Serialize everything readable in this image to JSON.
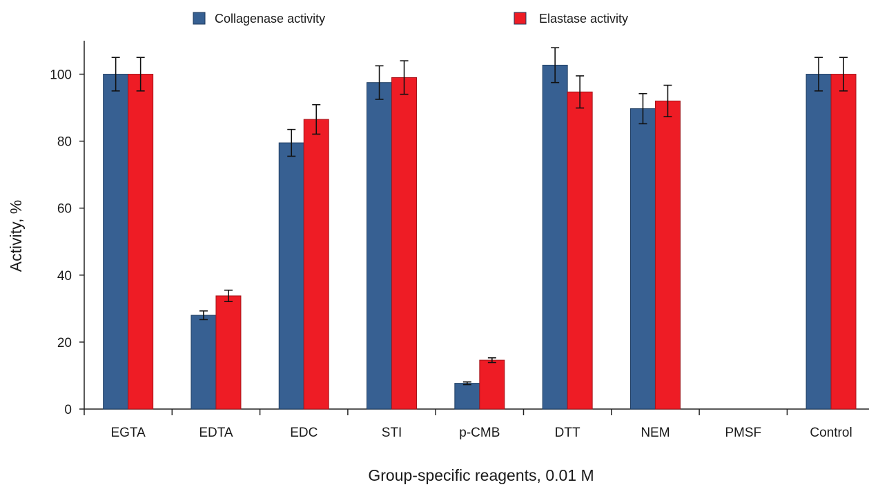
{
  "chart_data": {
    "type": "bar",
    "categories": [
      "EGTA",
      "EDTA",
      "EDC",
      "STI",
      "p-CMB",
      "DTT",
      "NEM",
      "PMSF",
      "Control"
    ],
    "series": [
      {
        "name": "Collagenase activity",
        "color": "#376092",
        "values": [
          100,
          28,
          79.5,
          97.5,
          7.7,
          102.7,
          89.7,
          0,
          100
        ],
        "errors": [
          5,
          1.3,
          4,
          5,
          0.4,
          5.2,
          4.5,
          0,
          5
        ]
      },
      {
        "name": "Elastase activity",
        "color": "#EE1C25",
        "values": [
          100,
          33.8,
          86.5,
          99,
          14.6,
          94.7,
          92,
          0,
          100
        ],
        "errors": [
          5,
          1.7,
          4.4,
          5,
          0.7,
          4.8,
          4.7,
          0,
          5
        ]
      }
    ],
    "xlabel": "Group-specific reagents, 0.01 M",
    "ylabel": "Activity, %",
    "ylim": [
      0,
      110
    ],
    "yticks": [
      "0",
      "20",
      "40",
      "60",
      "80",
      "100"
    ],
    "grid": false,
    "legend": "top"
  }
}
